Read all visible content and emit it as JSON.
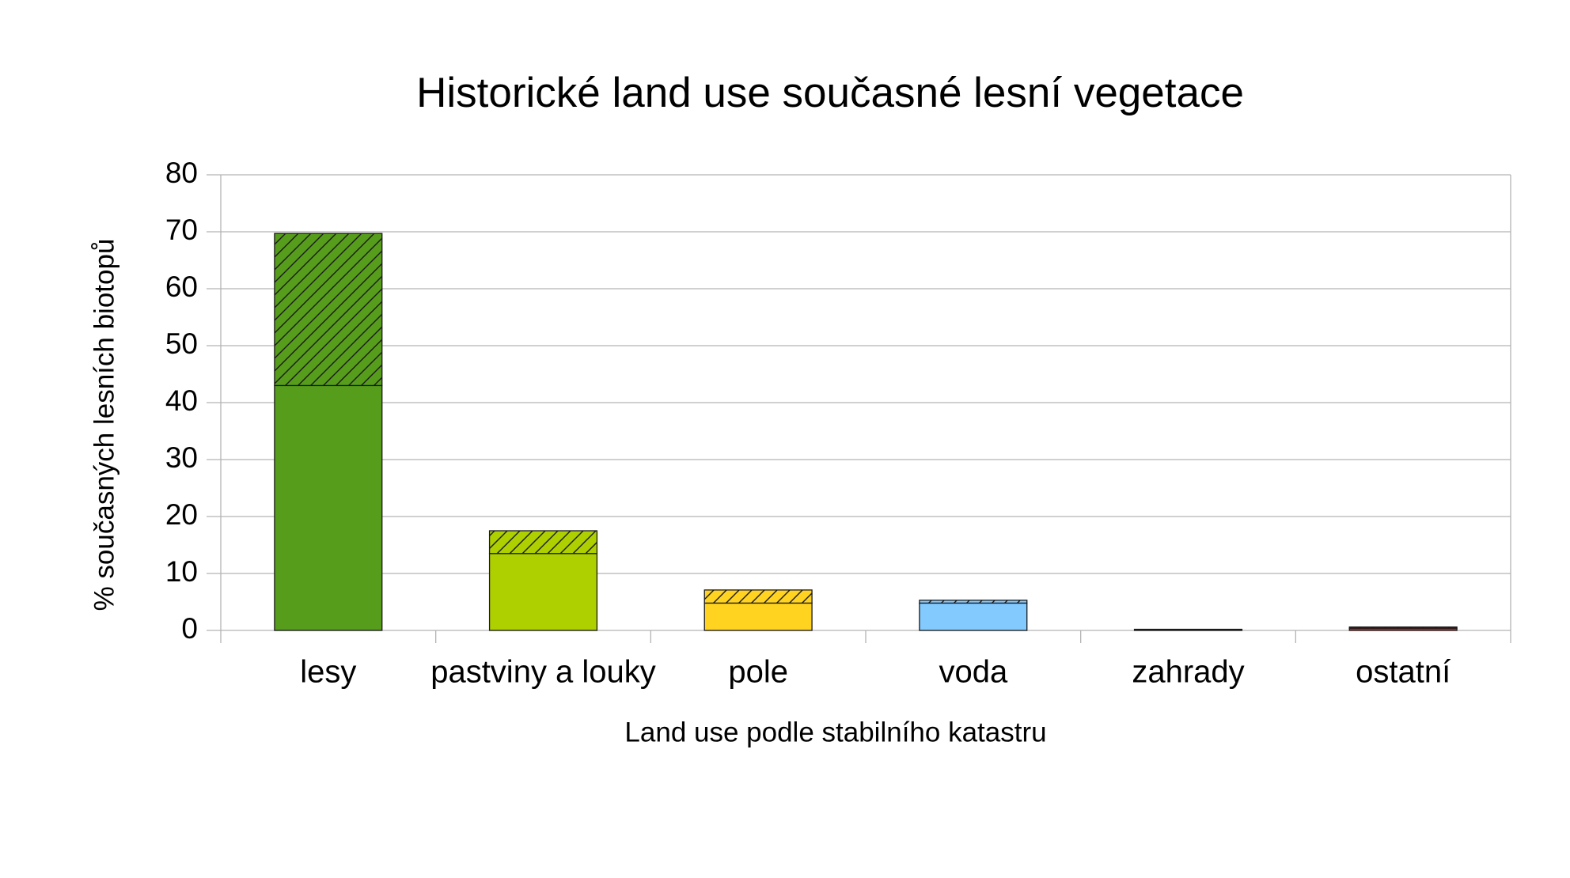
{
  "chart_data": {
    "type": "bar",
    "stacked": true,
    "title": "Historické land use současné lesní vegetace",
    "x_label": "Land use podle stabilního katastru",
    "y_label": "% současných lesních biotopů",
    "categories": [
      "lesy",
      "pastviny a louky",
      "pole",
      "voda",
      "zahrady",
      "ostatní"
    ],
    "colors": [
      "#579d1c",
      "#aecf00",
      "#ffd320",
      "#83caff",
      "#314004",
      "#c9211e"
    ],
    "series": [
      {
        "pattern": "solid",
        "values": [
          43,
          13.5,
          4.8,
          4.8,
          0.1,
          0.4
        ]
      },
      {
        "pattern": "hatched",
        "values": [
          26.7,
          4,
          2.3,
          0.5,
          0.1,
          0.2
        ]
      }
    ],
    "ylim": [
      0,
      80
    ],
    "yticks": [
      0,
      10,
      20,
      30,
      40,
      50,
      60,
      70,
      80
    ],
    "grid": true
  }
}
